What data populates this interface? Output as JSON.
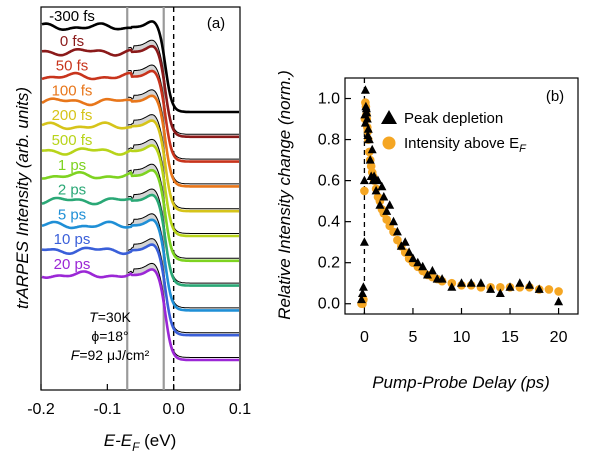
{
  "chart_data": [
    {
      "type": "line",
      "panel_label": "(a)",
      "xlabel_main": "E-E",
      "xlabel_sub": "F",
      "xlabel_unit": " (eV)",
      "ylabel": "trARPES Intensity (arb. units)",
      "xlim": [
        -0.2,
        0.1
      ],
      "xticks": [
        "-0.2",
        "-0.1",
        "0.0",
        "0.1"
      ],
      "xtick_values": [
        -0.2,
        -0.1,
        0.0,
        0.1
      ],
      "annotations": [
        {
          "prefix": "T",
          "text": "=30K"
        },
        {
          "prefix": "",
          "text": "ϕ=18°"
        },
        {
          "prefix": "F",
          "text": "=92 μJ/cm²"
        }
      ],
      "reference_lines": [
        -0.07,
        -0.015,
        0.0
      ],
      "series": [
        {
          "name": "-300 fs",
          "color": "#000000"
        },
        {
          "name": "0 fs",
          "color": "#8b1a1a"
        },
        {
          "name": "50 fs",
          "color": "#c8341c"
        },
        {
          "name": "100 fs",
          "color": "#e8761a"
        },
        {
          "name": "200 fs",
          "color": "#d6c41a"
        },
        {
          "name": "500 fs",
          "color": "#b8d41a"
        },
        {
          "name": "1 ps",
          "color": "#7ed321"
        },
        {
          "name": "2 ps",
          "color": "#2aa876"
        },
        {
          "name": "5 ps",
          "color": "#1f8fd6"
        },
        {
          "name": "10 ps",
          "color": "#3a5fd9"
        },
        {
          "name": "20 ps",
          "color": "#9b27d6"
        }
      ]
    },
    {
      "type": "scatter",
      "panel_label": "(b)",
      "xlabel": "Pump-Probe Delay (ps)",
      "ylabel": "Relative Intensity change (norm.)",
      "xlim": [
        -2,
        22
      ],
      "ylim": [
        -0.05,
        1.1
      ],
      "xticks": [
        "0",
        "5",
        "10",
        "15",
        "20"
      ],
      "xtick_values": [
        0,
        5,
        10,
        15,
        20
      ],
      "yticks": [
        "0.0",
        "0.2",
        "0.4",
        "0.6",
        "0.8",
        "1.0"
      ],
      "ytick_values": [
        0,
        0.2,
        0.4,
        0.6,
        0.8,
        1.0
      ],
      "legend_position": "top-right",
      "series": [
        {
          "name": "Peak depletion",
          "marker": "triangle",
          "color": "#000000",
          "x": [
            -0.3,
            -0.2,
            -0.1,
            0.0,
            0.0,
            0.05,
            0.1,
            0.1,
            0.15,
            0.2,
            0.25,
            0.3,
            0.35,
            0.4,
            0.45,
            0.5,
            0.6,
            0.7,
            0.8,
            0.9,
            1.0,
            1.2,
            1.4,
            1.6,
            1.8,
            2.0,
            2.3,
            2.6,
            3.0,
            3.4,
            3.8,
            4.2,
            4.6,
            5.0,
            5.5,
            6.0,
            6.5,
            7.0,
            7.5,
            8.0,
            9.0,
            10.0,
            11.0,
            12.0,
            13.0,
            14.0,
            15.0,
            16.0,
            17.0,
            18.0,
            20.0
          ],
          "y": [
            0.02,
            0.05,
            0.08,
            0.3,
            0.6,
            0.92,
            1.04,
            0.88,
            0.96,
            0.95,
            0.93,
            0.9,
            0.82,
            0.85,
            0.8,
            0.8,
            0.7,
            0.62,
            0.75,
            0.6,
            0.62,
            0.55,
            0.6,
            0.48,
            0.57,
            0.52,
            0.45,
            0.48,
            0.4,
            0.35,
            0.28,
            0.3,
            0.25,
            0.22,
            0.2,
            0.18,
            0.14,
            0.16,
            0.12,
            0.12,
            0.08,
            0.1,
            0.1,
            0.1,
            0.07,
            0.05,
            0.08,
            0.1,
            0.09,
            0.07,
            0.01
          ]
        },
        {
          "name": "Intensity above E",
          "name_sub": "F",
          "marker": "circle",
          "color": "#f5a623",
          "x": [
            -0.3,
            -0.2,
            -0.1,
            0.0,
            0.05,
            0.1,
            0.15,
            0.2,
            0.25,
            0.3,
            0.35,
            0.4,
            0.5,
            0.6,
            0.7,
            0.8,
            0.9,
            1.0,
            1.2,
            1.4,
            1.6,
            1.8,
            2.0,
            2.3,
            2.6,
            3.0,
            3.4,
            3.8,
            4.2,
            4.6,
            5.0,
            5.5,
            6.0,
            6.5,
            7.0,
            7.5,
            8.0,
            9.0,
            10.0,
            11.0,
            12.0,
            13.0,
            14.0,
            15.0,
            16.0,
            17.0,
            18.0,
            19.0,
            20.0
          ],
          "y": [
            0.0,
            0.0,
            0.02,
            0.55,
            0.9,
            0.98,
            0.96,
            0.92,
            0.9,
            0.86,
            0.84,
            0.8,
            0.74,
            0.7,
            0.67,
            0.64,
            0.62,
            0.6,
            0.56,
            0.52,
            0.5,
            0.46,
            0.44,
            0.41,
            0.38,
            0.35,
            0.31,
            0.28,
            0.25,
            0.22,
            0.2,
            0.18,
            0.16,
            0.14,
            0.13,
            0.12,
            0.11,
            0.1,
            0.09,
            0.09,
            0.08,
            0.08,
            0.08,
            0.08,
            0.08,
            0.08,
            0.07,
            0.07,
            0.06
          ]
        }
      ]
    }
  ]
}
